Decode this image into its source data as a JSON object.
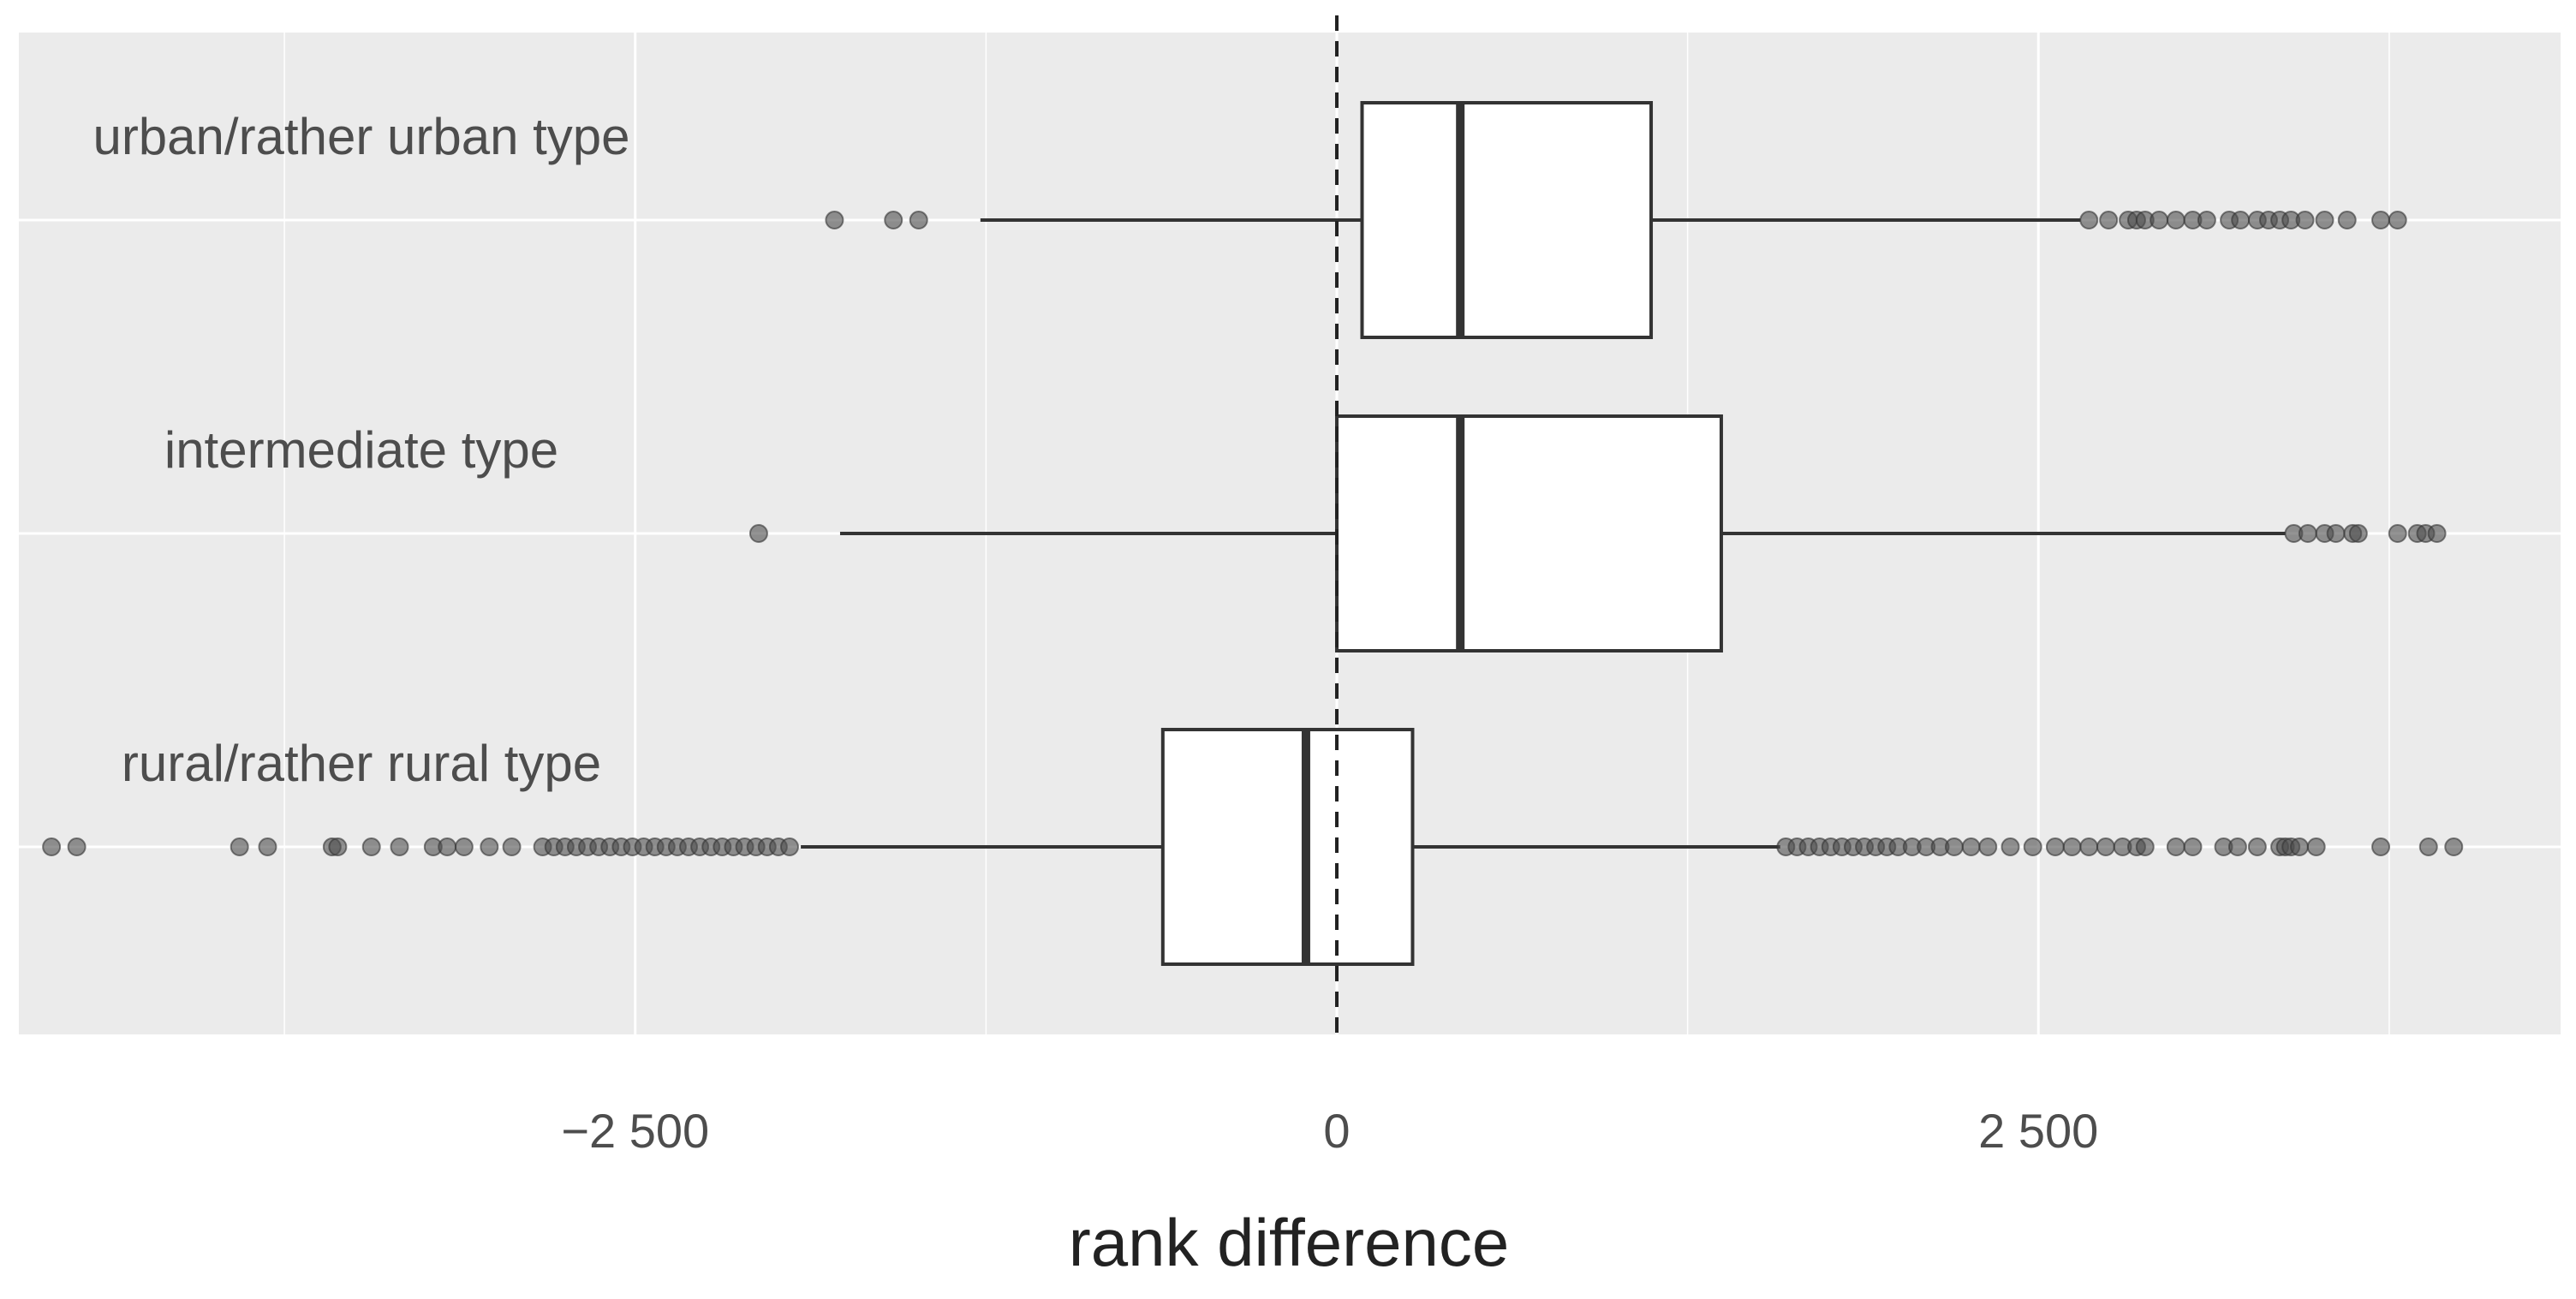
{
  "chart_data": {
    "type": "boxplot",
    "orientation": "horizontal",
    "xlabel": "rank difference",
    "xlim": [
      -4700,
      4400
    ],
    "x_ticks": [
      -2500,
      0,
      2500
    ],
    "x_tick_labels": [
      "−2 500",
      "0",
      "2 500"
    ],
    "x_minor_ticks": [
      -3750,
      -1250,
      1250,
      3750
    ],
    "reference_line": {
      "x": 0,
      "style": "dashed"
    },
    "grid": true,
    "colors": {
      "panel": "#ebebeb",
      "box_fill": "#ffffff",
      "line": "#333333",
      "point": "#4d4d4d"
    },
    "categories": [
      {
        "label": "urban/rather urban type",
        "whisker_low": -1270,
        "q1": 90,
        "median": 440,
        "q3": 1120,
        "whisker_high": 2650,
        "outliers": [
          -1790,
          -1580,
          -1490,
          2680,
          2750,
          2820,
          2850,
          2880,
          2930,
          2990,
          3050,
          3100,
          3180,
          3220,
          3280,
          3320,
          3360,
          3400,
          3450,
          3520,
          3600,
          3720,
          3780
        ]
      },
      {
        "label": "intermediate type",
        "whisker_low": -1770,
        "q1": 0,
        "median": 440,
        "q3": 1370,
        "whisker_high": 3380,
        "outliers": [
          -2060,
          3410,
          3460,
          3520,
          3560,
          3620,
          3640,
          3780,
          3850,
          3880,
          3920
        ]
      },
      {
        "label": "rural/rather rural type",
        "whisker_low": -1910,
        "q1": -620,
        "median": -110,
        "q3": 270,
        "whisker_high": 1580,
        "outliers": [
          -4580,
          -4490,
          -3910,
          -3810,
          -3580,
          -3560,
          -3440,
          -3340,
          -3220,
          -3170,
          -3110,
          -3020,
          -2940,
          -2830,
          -2790,
          -2750,
          -2710,
          -2670,
          -2630,
          -2590,
          -2550,
          -2510,
          -2470,
          -2430,
          -2390,
          -2350,
          -2310,
          -2270,
          -2230,
          -2190,
          -2150,
          -2110,
          -2070,
          -2030,
          -1990,
          -1950,
          1600,
          1640,
          1680,
          1720,
          1760,
          1800,
          1840,
          1880,
          1920,
          1960,
          2000,
          2050,
          2100,
          2150,
          2200,
          2260,
          2320,
          2400,
          2480,
          2560,
          2620,
          2680,
          2740,
          2800,
          2850,
          2880,
          2990,
          3050,
          3160,
          3210,
          3280,
          3360,
          3380,
          3400,
          3430,
          3490,
          3720,
          3890,
          3980
        ]
      }
    ]
  }
}
